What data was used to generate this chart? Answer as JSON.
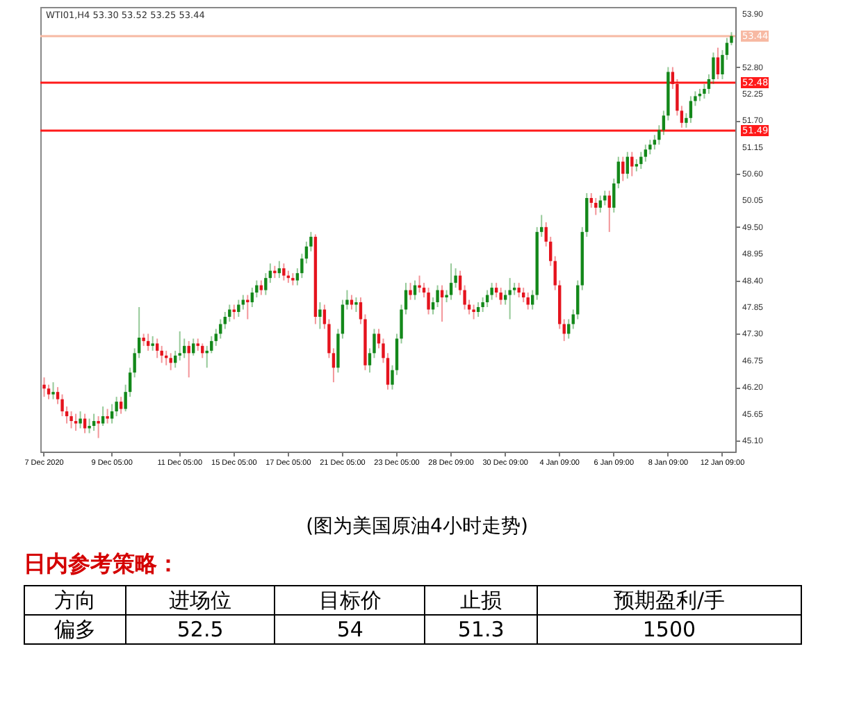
{
  "chart_data": [
    {
      "type": "candlestick",
      "title": "WTI01,H4  53.30 53.52 53.25 53.44",
      "categories": [
        "7 Dec 2020",
        null,
        null,
        null,
        null,
        null,
        null,
        null,
        null,
        null,
        null,
        null,
        null,
        null,
        null,
        "9 Dec 05:00",
        null,
        null,
        null,
        null,
        null,
        null,
        null,
        null,
        null,
        null,
        null,
        null,
        null,
        null,
        "11 Dec 05:00",
        null,
        null,
        null,
        null,
        null,
        null,
        null,
        null,
        null,
        null,
        null,
        "15 Dec 05:00",
        null,
        null,
        null,
        null,
        null,
        null,
        null,
        null,
        null,
        null,
        null,
        "17 Dec 05:00",
        null,
        null,
        null,
        null,
        null,
        null,
        null,
        null,
        null,
        null,
        null,
        "21 Dec 05:00",
        null,
        null,
        null,
        null,
        null,
        null,
        null,
        null,
        null,
        null,
        null,
        "23 Dec 05:00",
        null,
        null,
        null,
        null,
        null,
        null,
        null,
        null,
        null,
        null,
        null,
        "28 Dec 09:00",
        null,
        null,
        null,
        null,
        null,
        null,
        null,
        null,
        null,
        null,
        null,
        "30 Dec 09:00",
        null,
        null,
        null,
        null,
        null,
        null,
        null,
        null,
        null,
        null,
        null,
        "4 Jan 09:00",
        null,
        null,
        null,
        null,
        null,
        null,
        null,
        null,
        null,
        null,
        null,
        "6 Jan 09:00",
        null,
        null,
        null,
        null,
        null,
        null,
        null,
        null,
        null,
        null,
        null,
        "8 Jan 09:00",
        null,
        null,
        null,
        null,
        null,
        null,
        null,
        null,
        null,
        null,
        null,
        "12 Jan 09:00",
        null,
        null
      ],
      "ohlc": [
        [
          46.25,
          46.4,
          46.0,
          46.17
        ],
        [
          46.17,
          46.25,
          45.95,
          46.05
        ],
        [
          46.05,
          46.3,
          45.95,
          46.1
        ],
        [
          46.1,
          46.2,
          45.85,
          45.95
        ],
        [
          45.95,
          46.05,
          45.6,
          45.7
        ],
        [
          45.7,
          45.8,
          45.45,
          45.6
        ],
        [
          45.6,
          45.7,
          45.35,
          45.5
        ],
        [
          45.5,
          45.65,
          45.3,
          45.45
        ],
        [
          45.45,
          45.7,
          45.35,
          45.55
        ],
        [
          45.55,
          45.65,
          45.25,
          45.35
        ],
        [
          45.35,
          45.55,
          45.25,
          45.4
        ],
        [
          45.4,
          45.65,
          45.3,
          45.5
        ],
        [
          45.5,
          45.6,
          45.15,
          45.45
        ],
        [
          45.45,
          45.8,
          45.4,
          45.6
        ],
        [
          45.6,
          45.75,
          45.45,
          45.55
        ],
        [
          45.55,
          45.85,
          45.45,
          45.7
        ],
        [
          45.7,
          46.0,
          45.6,
          45.9
        ],
        [
          45.9,
          46.0,
          45.65,
          45.75
        ],
        [
          45.75,
          46.25,
          45.7,
          46.1
        ],
        [
          46.1,
          46.6,
          46.0,
          46.5
        ],
        [
          46.5,
          47.0,
          46.4,
          46.9
        ],
        [
          46.9,
          47.85,
          46.8,
          47.22
        ],
        [
          47.22,
          47.3,
          47.05,
          47.15
        ],
        [
          47.15,
          47.3,
          46.95,
          47.05
        ],
        [
          47.05,
          47.25,
          46.95,
          47.1
        ],
        [
          47.1,
          47.2,
          46.8,
          46.95
        ],
        [
          46.95,
          47.05,
          46.7,
          46.85
        ],
        [
          46.85,
          46.95,
          46.65,
          46.8
        ],
        [
          46.8,
          46.9,
          46.55,
          46.7
        ],
        [
          46.7,
          46.95,
          46.6,
          46.85
        ],
        [
          46.85,
          47.35,
          46.75,
          46.9
        ],
        [
          46.9,
          47.2,
          46.8,
          47.05
        ],
        [
          47.05,
          47.15,
          46.4,
          46.9
        ],
        [
          46.9,
          47.2,
          46.85,
          47.1
        ],
        [
          47.1,
          47.2,
          46.95,
          47.05
        ],
        [
          47.05,
          47.1,
          46.8,
          46.9
        ],
        [
          46.9,
          47.05,
          46.6,
          46.95
        ],
        [
          46.95,
          47.25,
          46.9,
          47.15
        ],
        [
          47.15,
          47.4,
          47.05,
          47.3
        ],
        [
          47.3,
          47.6,
          47.2,
          47.5
        ],
        [
          47.5,
          47.75,
          47.4,
          47.65
        ],
        [
          47.65,
          47.9,
          47.55,
          47.8
        ],
        [
          47.8,
          47.9,
          47.6,
          47.75
        ],
        [
          47.75,
          48.0,
          47.65,
          47.9
        ],
        [
          47.9,
          48.1,
          47.8,
          48.0
        ],
        [
          48.0,
          48.1,
          47.6,
          47.95
        ],
        [
          47.95,
          48.25,
          47.85,
          48.15
        ],
        [
          48.15,
          48.4,
          48.05,
          48.3
        ],
        [
          48.3,
          48.4,
          48.1,
          48.2
        ],
        [
          48.2,
          48.55,
          48.1,
          48.45
        ],
        [
          48.45,
          48.75,
          48.35,
          48.6
        ],
        [
          48.6,
          48.7,
          48.45,
          48.55
        ],
        [
          48.55,
          48.8,
          48.45,
          48.65
        ],
        [
          48.65,
          48.75,
          48.4,
          48.5
        ],
        [
          48.5,
          48.6,
          48.35,
          48.45
        ],
        [
          48.45,
          48.55,
          48.3,
          48.4
        ],
        [
          48.4,
          48.65,
          48.3,
          48.55
        ],
        [
          48.55,
          48.95,
          48.45,
          48.85
        ],
        [
          48.85,
          49.2,
          48.75,
          49.1
        ],
        [
          49.1,
          49.4,
          49.0,
          49.3
        ],
        [
          49.3,
          49.35,
          47.5,
          47.65
        ],
        [
          47.65,
          47.95,
          47.4,
          47.8
        ],
        [
          47.8,
          47.9,
          47.4,
          47.5
        ],
        [
          47.5,
          47.6,
          46.8,
          46.9
        ],
        [
          46.9,
          47.0,
          46.3,
          46.6
        ],
        [
          46.6,
          47.4,
          46.5,
          47.3
        ],
        [
          47.3,
          48.0,
          47.2,
          47.9
        ],
        [
          47.9,
          48.2,
          47.8,
          48.0
        ],
        [
          48.0,
          48.1,
          47.8,
          47.9
        ],
        [
          47.9,
          48.05,
          47.75,
          47.95
        ],
        [
          47.95,
          48.05,
          47.5,
          47.6
        ],
        [
          47.6,
          47.7,
          46.55,
          46.65
        ],
        [
          46.65,
          47.0,
          46.5,
          46.9
        ],
        [
          46.9,
          47.4,
          46.8,
          47.3
        ],
        [
          47.3,
          47.4,
          47.0,
          47.1
        ],
        [
          47.1,
          47.2,
          46.7,
          46.8
        ],
        [
          46.8,
          46.9,
          46.15,
          46.25
        ],
        [
          46.25,
          46.65,
          46.15,
          46.55
        ],
        [
          46.55,
          47.3,
          46.45,
          47.2
        ],
        [
          47.2,
          47.9,
          47.1,
          47.8
        ],
        [
          47.8,
          48.35,
          47.7,
          48.2
        ],
        [
          48.2,
          48.35,
          48.0,
          48.1
        ],
        [
          48.1,
          48.4,
          48.0,
          48.3
        ],
        [
          48.3,
          48.5,
          48.15,
          48.25
        ],
        [
          48.25,
          48.35,
          48.05,
          48.15
        ],
        [
          48.15,
          48.25,
          47.7,
          47.8
        ],
        [
          47.8,
          48.05,
          47.7,
          47.95
        ],
        [
          47.95,
          48.3,
          47.85,
          48.2
        ],
        [
          48.2,
          48.3,
          47.55,
          48.05
        ],
        [
          48.05,
          48.2,
          47.95,
          48.1
        ],
        [
          48.1,
          48.75,
          48.0,
          48.35
        ],
        [
          48.35,
          48.65,
          48.25,
          48.5
        ],
        [
          48.5,
          48.6,
          48.1,
          48.2
        ],
        [
          48.2,
          48.3,
          47.8,
          47.9
        ],
        [
          47.9,
          48.0,
          47.7,
          47.8
        ],
        [
          47.8,
          47.9,
          47.6,
          47.75
        ],
        [
          47.75,
          47.95,
          47.65,
          47.85
        ],
        [
          47.85,
          48.05,
          47.75,
          47.95
        ],
        [
          47.95,
          48.2,
          47.85,
          48.1
        ],
        [
          48.1,
          48.35,
          48.0,
          48.25
        ],
        [
          48.25,
          48.35,
          48.05,
          48.15
        ],
        [
          48.15,
          48.25,
          47.9,
          48.0
        ],
        [
          48.0,
          48.2,
          47.9,
          48.1
        ],
        [
          48.1,
          48.45,
          47.6,
          48.2
        ],
        [
          48.2,
          48.35,
          48.1,
          48.25
        ],
        [
          48.25,
          48.35,
          48.05,
          48.15
        ],
        [
          48.15,
          48.25,
          47.95,
          48.05
        ],
        [
          48.05,
          48.15,
          47.8,
          47.9
        ],
        [
          47.9,
          48.2,
          47.8,
          48.1
        ],
        [
          48.1,
          49.5,
          48.0,
          49.4
        ],
        [
          49.4,
          49.75,
          49.3,
          49.5
        ],
        [
          49.5,
          49.6,
          49.1,
          49.2
        ],
        [
          49.2,
          49.3,
          48.7,
          48.8
        ],
        [
          48.8,
          48.9,
          48.2,
          48.3
        ],
        [
          48.3,
          48.4,
          47.4,
          47.5
        ],
        [
          47.5,
          47.6,
          47.15,
          47.3
        ],
        [
          47.3,
          47.6,
          47.2,
          47.5
        ],
        [
          47.5,
          47.8,
          47.4,
          47.7
        ],
        [
          47.7,
          48.4,
          47.6,
          48.3
        ],
        [
          48.3,
          49.5,
          48.2,
          49.4
        ],
        [
          49.4,
          50.2,
          49.3,
          50.1
        ],
        [
          50.1,
          50.2,
          49.9,
          50.0
        ],
        [
          50.0,
          50.1,
          49.75,
          49.9
        ],
        [
          49.9,
          50.15,
          49.8,
          50.05
        ],
        [
          50.05,
          50.25,
          49.95,
          50.15
        ],
        [
          50.15,
          50.25,
          49.4,
          49.9
        ],
        [
          49.9,
          50.5,
          49.8,
          50.4
        ],
        [
          50.4,
          50.95,
          50.3,
          50.85
        ],
        [
          50.85,
          50.95,
          50.45,
          50.6
        ],
        [
          50.6,
          51.05,
          50.5,
          50.95
        ],
        [
          50.95,
          51.05,
          50.55,
          50.75
        ],
        [
          50.75,
          50.9,
          50.65,
          50.8
        ],
        [
          50.8,
          51.05,
          50.7,
          50.95
        ],
        [
          50.95,
          51.2,
          50.85,
          51.1
        ],
        [
          51.1,
          51.3,
          51.0,
          51.2
        ],
        [
          51.2,
          51.4,
          51.1,
          51.3
        ],
        [
          51.3,
          51.6,
          51.2,
          51.5
        ],
        [
          51.5,
          51.9,
          51.4,
          51.8
        ],
        [
          51.8,
          52.8,
          51.7,
          52.7
        ],
        [
          52.7,
          52.8,
          52.35,
          52.45
        ],
        [
          52.45,
          52.55,
          51.8,
          51.9
        ],
        [
          51.9,
          52.0,
          51.55,
          51.65
        ],
        [
          51.65,
          51.85,
          51.55,
          51.75
        ],
        [
          51.75,
          52.2,
          51.65,
          52.1
        ],
        [
          52.1,
          52.3,
          52.0,
          52.2
        ],
        [
          52.2,
          52.35,
          52.1,
          52.25
        ],
        [
          52.25,
          52.45,
          52.15,
          52.35
        ],
        [
          52.35,
          52.65,
          52.25,
          52.55
        ],
        [
          52.55,
          53.1,
          52.45,
          53.0
        ],
        [
          53.0,
          53.2,
          52.55,
          52.65
        ],
        [
          52.65,
          53.15,
          52.55,
          53.05
        ],
        [
          53.05,
          53.4,
          52.95,
          53.3
        ],
        [
          53.3,
          53.52,
          53.25,
          53.44
        ]
      ],
      "colors": [
        "#e5131d",
        "#e5131d",
        "#13881a",
        "#e5131d",
        "#e5131d",
        "#e5131d",
        "#e5131d",
        "#e5131d",
        "#13881a",
        "#e5131d",
        "#13881a",
        "#13881a",
        "#e5131d",
        "#13881a",
        "#e5131d",
        "#13881a",
        "#13881a",
        "#e5131d",
        "#13881a",
        "#13881a",
        "#13881a",
        "#13881a",
        "#e5131d",
        "#e5131d",
        "#13881a",
        "#e5131d",
        "#e5131d",
        "#e5131d",
        "#e5131d",
        "#13881a",
        "#13881a",
        "#13881a",
        "#e5131d",
        "#13881a",
        "#e5131d",
        "#e5131d",
        "#13881a",
        "#13881a",
        "#13881a",
        "#13881a",
        "#13881a",
        "#13881a",
        "#e5131d",
        "#13881a",
        "#13881a",
        "#e5131d",
        "#13881a",
        "#13881a",
        "#e5131d",
        "#13881a",
        "#13881a",
        "#e5131d",
        "#13881a",
        "#e5131d",
        "#e5131d",
        "#e5131d",
        "#13881a",
        "#13881a",
        "#13881a",
        "#13881a",
        "#e5131d",
        "#13881a",
        "#e5131d",
        "#e5131d",
        "#e5131d",
        "#13881a",
        "#13881a",
        "#13881a",
        "#e5131d",
        "#13881a",
        "#e5131d",
        "#e5131d",
        "#13881a",
        "#13881a",
        "#e5131d",
        "#e5131d",
        "#e5131d",
        "#13881a",
        "#13881a",
        "#13881a",
        "#13881a",
        "#e5131d",
        "#13881a",
        "#e5131d",
        "#e5131d",
        "#e5131d",
        "#13881a",
        "#13881a",
        "#e5131d",
        "#13881a",
        "#13881a",
        "#13881a",
        "#e5131d",
        "#e5131d",
        "#e5131d",
        "#e5131d",
        "#13881a",
        "#13881a",
        "#13881a",
        "#13881a",
        "#e5131d",
        "#e5131d",
        "#13881a",
        "#13881a",
        "#13881a",
        "#e5131d",
        "#e5131d",
        "#e5131d",
        "#13881a",
        "#13881a",
        "#13881a",
        "#e5131d",
        "#e5131d",
        "#e5131d",
        "#e5131d",
        "#e5131d",
        "#13881a",
        "#13881a",
        "#13881a",
        "#13881a",
        "#13881a",
        "#e5131d",
        "#e5131d",
        "#13881a",
        "#13881a",
        "#e5131d",
        "#13881a",
        "#13881a",
        "#e5131d",
        "#13881a",
        "#e5131d",
        "#13881a",
        "#13881a",
        "#13881a",
        "#13881a",
        "#13881a",
        "#13881a",
        "#13881a",
        "#13881a",
        "#e5131d",
        "#e5131d",
        "#e5131d",
        "#13881a",
        "#13881a",
        "#13881a",
        "#13881a",
        "#13881a",
        "#13881a",
        "#13881a",
        "#e5131d",
        "#13881a",
        "#13881a",
        "#13881a"
      ],
      "ylim": [
        44.87,
        54.04
      ],
      "yticks": [
        {
          "value": 45.1,
          "label": "45.10"
        },
        45.65,
        {
          "value": 46.2,
          "label": "46.20"
        },
        46.75,
        {
          "value": 47.3,
          "label": "47.30"
        },
        47.85,
        {
          "value": 48.4,
          "label": "48.40"
        },
        48.95,
        {
          "value": 49.5,
          "label": "49.50"
        },
        50.05,
        {
          "value": 50.6,
          "label": "50.60"
        },
        51.15,
        {
          "value": 51.7,
          "label": "51.70"
        },
        52.25,
        {
          "value": 52.8,
          "label": "52.80"
        },
        {
          "value": 53.9,
          "label": "53.90"
        }
      ],
      "ref_lines": [
        {
          "axis": "y",
          "value": 53.44,
          "label": "53.44",
          "color": "#f7b9a3"
        },
        {
          "axis": "y",
          "value": 52.48,
          "label": "52.48",
          "color": "#ff1a1a"
        },
        {
          "axis": "y",
          "value": 51.49,
          "label": "51.49",
          "color": "#ff1a1a"
        }
      ],
      "annotations": [
        "(图为美国原油4小时走势)"
      ],
      "grid": false
    },
    {
      "type": "other",
      "title": "日内参考策略：",
      "categories": [
        "方向",
        "进场位",
        "目标价",
        "止损",
        "预期盈利/手"
      ],
      "cell_labels": [
        [
          "偏多",
          "52.5",
          "54",
          "51.3",
          "1500"
        ]
      ]
    }
  ]
}
